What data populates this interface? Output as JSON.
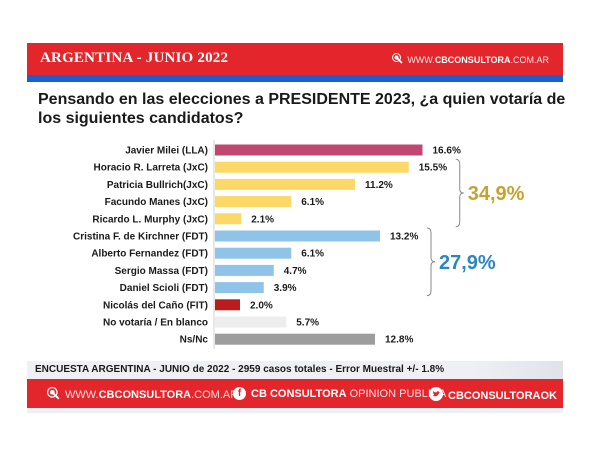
{
  "header": {
    "title": "ARGENTINA - JUNIO 2022",
    "site_prefix": "WWW.",
    "site_brand": "CBCONSULTORA",
    "site_suffix": ".COM.AR",
    "icon": "cursor-click-icon"
  },
  "question": "Pensando en las elecciones a PRESIDENTE 2023, ¿a quien votaría de los siguientes candidatos?",
  "chart_data": {
    "type": "bar",
    "orientation": "horizontal",
    "title": "Pensando en las elecciones a PRESIDENTE 2023, ¿a quien votaría de los siguientes candidatos?",
    "xlabel": "",
    "ylabel": "",
    "xlim": [
      0,
      17
    ],
    "grid": false,
    "categories": [
      "Javier Milei (LLA)",
      "Horacio R. Larreta (JxC)",
      "Patricia Bullrich(JxC)",
      "Facundo Manes (JxC)",
      "Ricardo L. Murphy (JxC)",
      "Cristina F. de Kirchner (FDT)",
      "Alberto Fernandez (FDT)",
      "Sergio Massa (FDT)",
      "Daniel Scioli (FDT)",
      "Nicolás del Caño (FIT)",
      "No votaría / En blanco",
      "Ns/Nc"
    ],
    "values": [
      16.6,
      15.5,
      11.2,
      6.1,
      2.1,
      13.2,
      6.1,
      4.7,
      3.9,
      2.0,
      5.7,
      12.8
    ],
    "value_labels": [
      "16.6%",
      "15.5%",
      "11.2%",
      "6.1%",
      "2.1%",
      "13.2%",
      "6.1%",
      "4.7%",
      "3.9%",
      "2.0%",
      "5.7%",
      "12.8%"
    ],
    "colors": [
      "#c0476f",
      "#fcd867",
      "#fcd867",
      "#fcd867",
      "#fcd867",
      "#8fc3e8",
      "#8fc3e8",
      "#8fc3e8",
      "#8fc3e8",
      "#b81c1c",
      "#ededed",
      "#9d9d9d"
    ],
    "groups": [
      {
        "name": "JxC",
        "label": "34,9%",
        "from": 1,
        "to": 4,
        "color": "#c9a22d"
      },
      {
        "name": "FDT",
        "label": "27,9%",
        "from": 5,
        "to": 8,
        "color": "#2b87c2"
      }
    ]
  },
  "info": {
    "text": "ENCUESTA ARGENTINA - JUNIO de 2022 -  2959 casos totales - Error Muestral +/- 1.8%"
  },
  "footer": {
    "web": {
      "icon": "cursor-click-icon",
      "prefix": "WWW.",
      "brand": "CBCONSULTORA",
      "suffix": ".COM.AR"
    },
    "facebook": {
      "icon": "facebook-icon",
      "glyph": "f",
      "brand": "CB CONSULTORA",
      "suffix": " OPINION PUBLICA"
    },
    "twitter": {
      "icon": "twitter-icon",
      "glyph": "✓",
      "handle": "CBCONSULTORAOK"
    }
  }
}
